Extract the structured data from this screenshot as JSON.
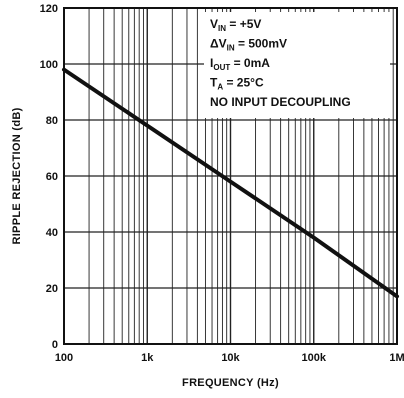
{
  "chart_data": {
    "type": "line",
    "title": "",
    "xlabel": "FREQUENCY (Hz)",
    "ylabel": "RIPPLE REJECTION (dB)",
    "x_scale": "log",
    "xlim": [
      100,
      1000000
    ],
    "ylim": [
      0,
      120
    ],
    "x_ticks": [
      100,
      1000,
      10000,
      100000,
      1000000
    ],
    "x_tick_labels": [
      "100",
      "1k",
      "10k",
      "100k",
      "1M"
    ],
    "y_ticks": [
      0,
      20,
      40,
      60,
      80,
      100,
      120
    ],
    "y_tick_labels": [
      "0",
      "20",
      "40",
      "60",
      "80",
      "100",
      "120"
    ],
    "grid": true,
    "series": [
      {
        "x": [
          100,
          1000,
          10000,
          100000,
          1000000
        ],
        "y": [
          98,
          78,
          58,
          38,
          17
        ]
      }
    ],
    "annotations": [
      {
        "base": "V",
        "sub": "IN",
        "rest": " = +5V"
      },
      {
        "base": "ΔV",
        "sub": "IN",
        "rest": " = 500mV"
      },
      {
        "base": "I",
        "sub": "OUT",
        "rest": " = 0mA"
      },
      {
        "base": "T",
        "sub": "A",
        "rest": " = 25°C"
      },
      {
        "base": "NO INPUT DECOUPLING",
        "sub": "",
        "rest": ""
      }
    ],
    "annotation_placement": "top-right",
    "line_color": "#111111",
    "grid_color": "#222222"
  }
}
